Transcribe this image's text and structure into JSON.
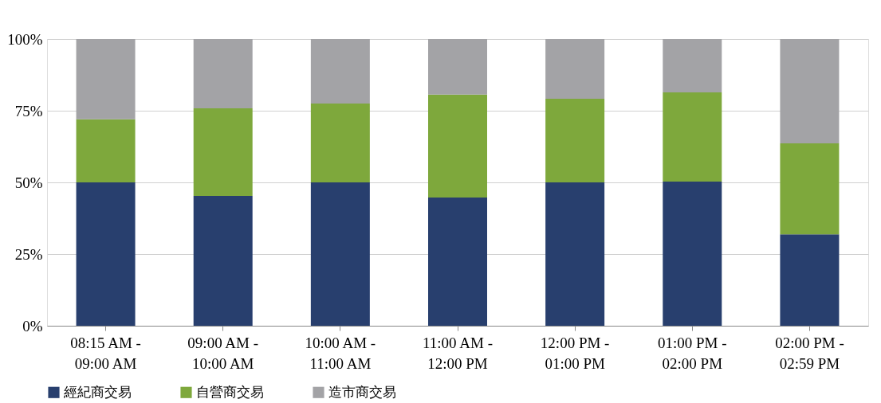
{
  "chart_data": {
    "type": "bar",
    "stacked": true,
    "categories": [
      "08:15 AM -\n09:00 AM",
      "09:00 AM -\n10:00 AM",
      "10:00 AM -\n11:00 AM",
      "11:00 AM -\n12:00 PM",
      "12:00 PM -\n01:00 PM",
      "01:00 PM -\n02:00 PM",
      "02:00 PM -\n02:59 PM"
    ],
    "series": [
      {
        "name": "經紀商交易",
        "color": "#283f6e",
        "values": [
          50,
          45.3,
          50,
          44.7,
          50,
          50.3,
          31.9
        ]
      },
      {
        "name": "自營商交易",
        "color": "#7ea83c",
        "values": [
          22,
          30.5,
          27.5,
          35.9,
          29.2,
          31.1,
          31.7
        ]
      },
      {
        "name": "造市商交易",
        "color": "#a3a3a6",
        "values": [
          28,
          24.2,
          22.5,
          19.4,
          20.8,
          18.6,
          36.4
        ]
      }
    ],
    "ylim": [
      0,
      100
    ],
    "yticks": [
      {
        "value": 0,
        "label": "0%"
      },
      {
        "value": 25,
        "label": "25%"
      },
      {
        "value": 50,
        "label": "50%"
      },
      {
        "value": 75,
        "label": "75%"
      },
      {
        "value": 100,
        "label": "100%"
      }
    ],
    "grid": "y",
    "legend": "bottom"
  }
}
